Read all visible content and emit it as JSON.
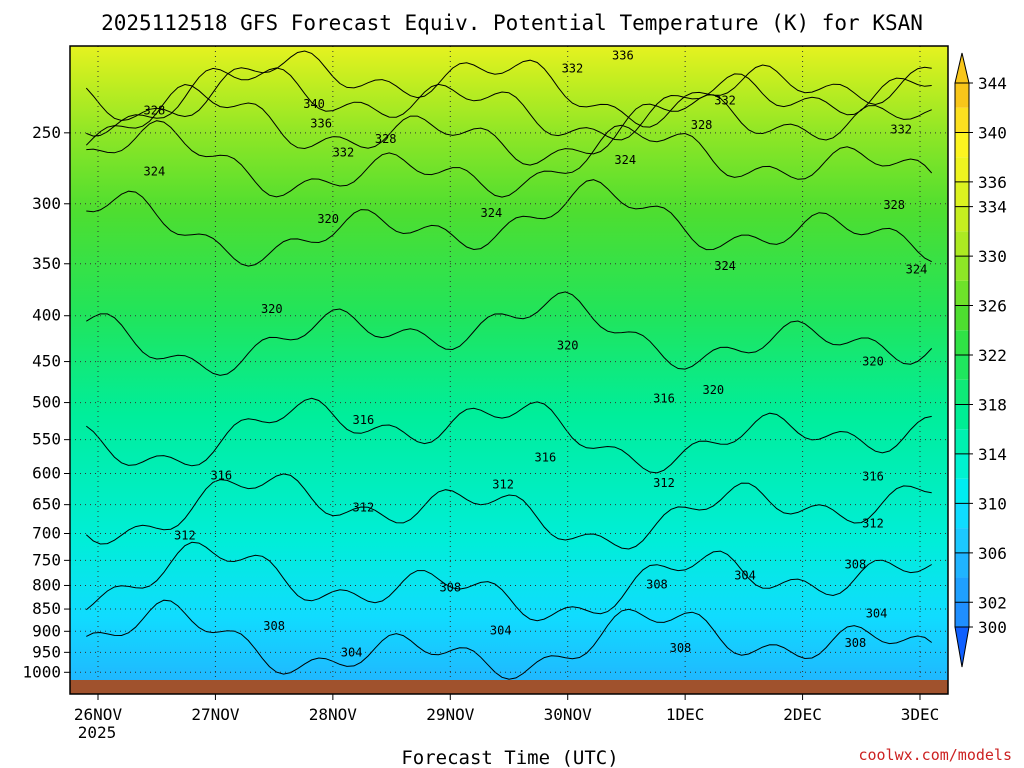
{
  "chart_data": {
    "type": "contour",
    "title": "2025112518 GFS Forecast Equiv. Potential Temperature (K) for KSAN",
    "xlabel": "Forecast Time (UTC)",
    "ylabel": "",
    "credit": "coolwx.com/models",
    "x_ticks": [
      "26NOV",
      "27NOV",
      "28NOV",
      "29NOV",
      "30NOV",
      "1DEC",
      "2DEC",
      "3DEC"
    ],
    "x_tick_sublabel": "2025",
    "y_ticks": [
      250,
      300,
      350,
      400,
      450,
      500,
      550,
      600,
      650,
      700,
      750,
      800,
      850,
      900,
      950,
      1000
    ],
    "y_scale": "log-pressure",
    "y_range_hpa": [
      200,
      1020
    ],
    "colorbar": {
      "levels": [
        300,
        302,
        304,
        306,
        308,
        310,
        312,
        314,
        316,
        318,
        320,
        322,
        324,
        326,
        328,
        330,
        332,
        334,
        336,
        338,
        340,
        342,
        344
      ],
      "labels": [
        300,
        302,
        306,
        310,
        314,
        318,
        322,
        326,
        330,
        334,
        336,
        340,
        344
      ],
      "colors": [
        "#1f8fff",
        "#1fa0ff",
        "#20b4ff",
        "#1cc8ff",
        "#10dcff",
        "#00ecf0",
        "#00f2d0",
        "#00f0b0",
        "#00ee94",
        "#10ea78",
        "#20e65e",
        "#30e246",
        "#4ede30",
        "#6ee22a",
        "#8ee626",
        "#acea22",
        "#c6ee20",
        "#dcf220",
        "#eef420",
        "#fcf420",
        "#fce020",
        "#f8c61a"
      ]
    },
    "contour_labels": [
      {
        "text": "340",
        "t": 1.84,
        "p": 232
      },
      {
        "text": "336",
        "t": 1.9,
        "p": 244
      },
      {
        "text": "332",
        "t": 2.09,
        "p": 263
      },
      {
        "text": "328",
        "t": 2.45,
        "p": 254
      },
      {
        "text": "332",
        "t": 4.04,
        "p": 212
      },
      {
        "text": "336",
        "t": 4.47,
        "p": 205
      },
      {
        "text": "332",
        "t": 5.34,
        "p": 230
      },
      {
        "text": "328",
        "t": 5.14,
        "p": 245
      },
      {
        "text": "332",
        "t": 6.84,
        "p": 248
      },
      {
        "text": "328",
        "t": 0.48,
        "p": 236
      },
      {
        "text": "324",
        "t": 0.48,
        "p": 276
      },
      {
        "text": "324",
        "t": 4.49,
        "p": 268
      },
      {
        "text": "324",
        "t": 3.35,
        "p": 307
      },
      {
        "text": "328",
        "t": 6.78,
        "p": 301
      },
      {
        "text": "324",
        "t": 5.34,
        "p": 352
      },
      {
        "text": "324",
        "t": 6.97,
        "p": 355
      },
      {
        "text": "320",
        "t": 1.48,
        "p": 393
      },
      {
        "text": "320",
        "t": 1.96,
        "p": 312
      },
      {
        "text": "320",
        "t": 4.0,
        "p": 432
      },
      {
        "text": "320",
        "t": 5.24,
        "p": 484
      },
      {
        "text": "320",
        "t": 6.6,
        "p": 450
      },
      {
        "text": "316",
        "t": 2.26,
        "p": 523
      },
      {
        "text": "316",
        "t": 3.81,
        "p": 576
      },
      {
        "text": "316",
        "t": 4.82,
        "p": 495
      },
      {
        "text": "316",
        "t": 1.05,
        "p": 603
      },
      {
        "text": "316",
        "t": 6.6,
        "p": 605
      },
      {
        "text": "312",
        "t": 0.74,
        "p": 704
      },
      {
        "text": "312",
        "t": 2.26,
        "p": 655
      },
      {
        "text": "312",
        "t": 3.45,
        "p": 617
      },
      {
        "text": "312",
        "t": 4.82,
        "p": 615
      },
      {
        "text": "312",
        "t": 6.6,
        "p": 682
      },
      {
        "text": "308",
        "t": 1.5,
        "p": 888
      },
      {
        "text": "308",
        "t": 3.0,
        "p": 804
      },
      {
        "text": "308",
        "t": 4.76,
        "p": 798
      },
      {
        "text": "308",
        "t": 6.45,
        "p": 758
      },
      {
        "text": "308",
        "t": 4.96,
        "p": 940
      },
      {
        "text": "308",
        "t": 6.45,
        "p": 927
      },
      {
        "text": "304",
        "t": 2.16,
        "p": 950
      },
      {
        "text": "304",
        "t": 3.43,
        "p": 898
      },
      {
        "text": "304",
        "t": 5.51,
        "p": 780
      },
      {
        "text": "304",
        "t": 6.63,
        "p": 860
      }
    ]
  }
}
